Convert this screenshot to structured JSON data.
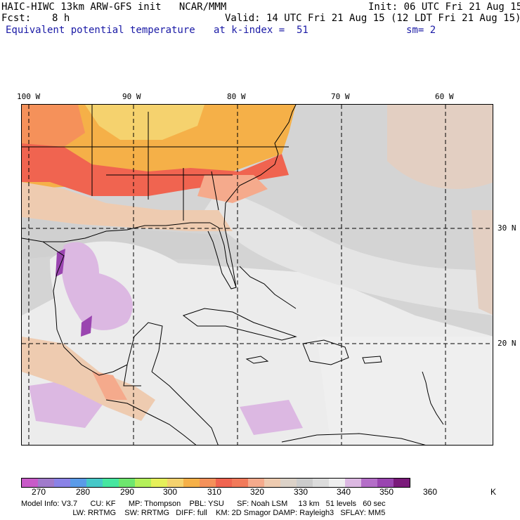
{
  "header": {
    "model_title": "HAIC-HIWC 13km ARW-GFS init   NCAR/MMM",
    "init": "Init: 06 UTC Fri 21 Aug 15",
    "fcst_label": "Fcst:",
    "fcst_value": "8 h",
    "valid": "Valid: 14 UTC Fri 21 Aug 15 (12 LDT Fri 21 Aug 15)",
    "field": "Equivalent potential temperature",
    "level": "at k-index =  51",
    "smoothing": "sm= 2"
  },
  "map": {
    "longitude_labels": [
      "100 W",
      "90 W",
      "80 W",
      "70 W",
      "60 W"
    ],
    "latitude_labels": [
      "30 N",
      "20 N"
    ],
    "features": [
      "US coastline and states",
      "Gulf of Mexico",
      "Florida",
      "Cuba",
      "Hispaniola",
      "Puerto Rico",
      "Lesser Antilles",
      "Mexico",
      "Central America"
    ],
    "dominant_colors": {
      "ocean": "#dadada",
      "light": "#ececec",
      "warm_land_north": "#f5b048",
      "hot_land_southeast": "#f27a5a",
      "tan": "#eecbb0",
      "lavender": "#dcb8e2",
      "purple": "#9a45b0"
    }
  },
  "colorbar": {
    "colors": [
      "#c85ac8",
      "#a07acb",
      "#8a82e6",
      "#5a9be8",
      "#46c8c8",
      "#46e6a0",
      "#6ee66e",
      "#b4f05a",
      "#e6f05a",
      "#f5d26e",
      "#f5b048",
      "#f5915a",
      "#f06450",
      "#f27a5a",
      "#f5aa8c",
      "#eecbb0",
      "#dcd2c8",
      "#cccccc",
      "#dcdcdc",
      "#eeeeee",
      "#dcb8e2",
      "#b46ec8",
      "#9a45b0",
      "#7a1a7a"
    ],
    "tick_labels": [
      "270",
      "280",
      "290",
      "300",
      "310",
      "320",
      "330",
      "340",
      "350",
      "360"
    ],
    "units": "K"
  },
  "footer": {
    "line1": "Model Info: V3.7      CU: KF      MP: Thompson    PBL: YSU      SF: Noah LSM     13 km   51 levels   60 sec",
    "line2": "                        LW: RRTMG    SW: RRTMG   DIFF: full    KM: 2D Smagor DAMP: Rayleigh3   SFLAY: MM5"
  }
}
